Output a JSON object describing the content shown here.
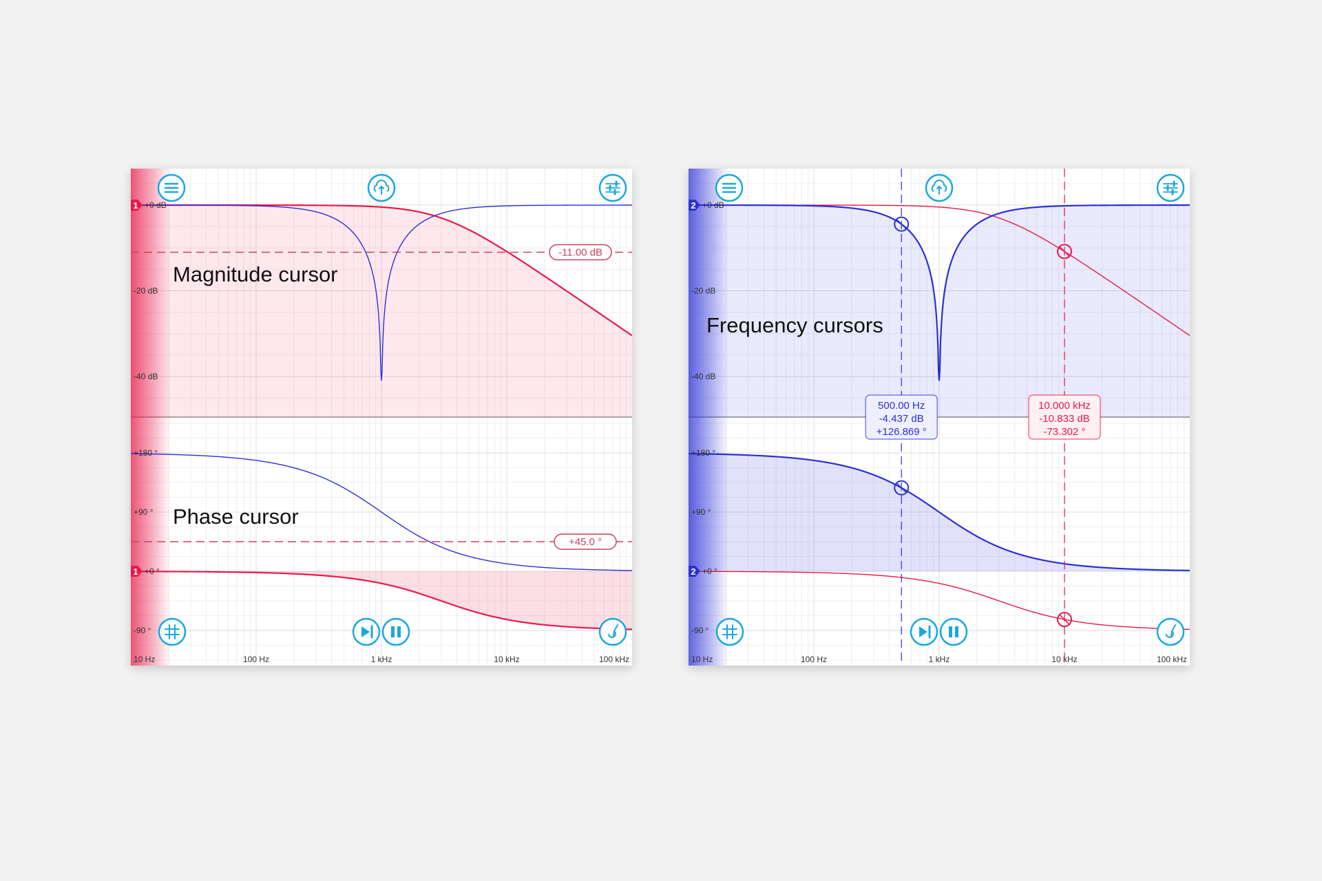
{
  "chart_data": [
    {
      "type": "line",
      "xscale": "log",
      "xlim": [
        10,
        100000
      ],
      "x_ticks": [
        "10 Hz",
        "100 Hz",
        "1 kHz",
        "10 kHz",
        "100 kHz"
      ],
      "magnitude_ylim": [
        -47,
        7
      ],
      "magnitude_ticks": [
        "+0 dB",
        "-20 dB",
        "-40 dB"
      ],
      "phase_ylim": [
        -135,
        225
      ],
      "phase_ticks": [
        "+180 °",
        "+90 °",
        "+0 °",
        "-90 °"
      ],
      "grid": true,
      "annotation": "Magnitude cursor",
      "phase_annotation": "Phase cursor",
      "active_filter": "1",
      "active_color": "#e8194a",
      "series": [
        {
          "id": "1",
          "color": "#e8194a",
          "filter": "first-order lowpass",
          "cutoff_hz": 3000
        },
        {
          "id": "2",
          "color": "#2b2fd6",
          "filter": "notch",
          "center_hz": 1000,
          "q": 0.5
        }
      ],
      "magnitude_cursor": {
        "value_db": -11.0,
        "label": "-11.00 dB"
      },
      "phase_cursor": {
        "value_deg": 45.0,
        "label": "+45.0 °"
      }
    },
    {
      "type": "line",
      "xscale": "log",
      "xlim": [
        10,
        100000
      ],
      "x_ticks": [
        "10 Hz",
        "100 Hz",
        "1 kHz",
        "10 kHz",
        "100 kHz"
      ],
      "magnitude_ylim": [
        -47,
        7
      ],
      "magnitude_ticks": [
        "+0 dB",
        "-20 dB",
        "-40 dB"
      ],
      "phase_ylim": [
        -135,
        225
      ],
      "phase_ticks": [
        "+180 °",
        "+90 °",
        "+0 °",
        "-90 °"
      ],
      "grid": true,
      "annotation": "Frequency cursors",
      "active_filter": "2",
      "active_color": "#2b2fd6",
      "series": [
        {
          "id": "1",
          "color": "#e8194a",
          "filter": "first-order lowpass",
          "cutoff_hz": 3000
        },
        {
          "id": "2",
          "color": "#2b2fd6",
          "filter": "notch",
          "center_hz": 1000,
          "q": 0.5
        }
      ],
      "frequency_cursors": [
        {
          "series": "2",
          "freq_hz": 500,
          "magnitude_db": -4.437,
          "phase_deg": 126.869,
          "lines": [
            "500.00 Hz",
            "-4.437 dB",
            "+126.869 °"
          ]
        },
        {
          "series": "1",
          "freq_hz": 10000,
          "magnitude_db": -10.833,
          "phase_deg": -73.302,
          "lines": [
            "10.000 kHz",
            "-10.833 dB",
            "-73.302 °"
          ]
        }
      ]
    }
  ],
  "toolbar": {
    "top": [
      "menu-icon",
      "cloud-upload-icon",
      "sliders-icon"
    ],
    "bottom": [
      "grid-icon",
      "step-forward-icon",
      "pause-icon",
      "tuning-icon"
    ],
    "icon_color": "#1aa7e0"
  }
}
